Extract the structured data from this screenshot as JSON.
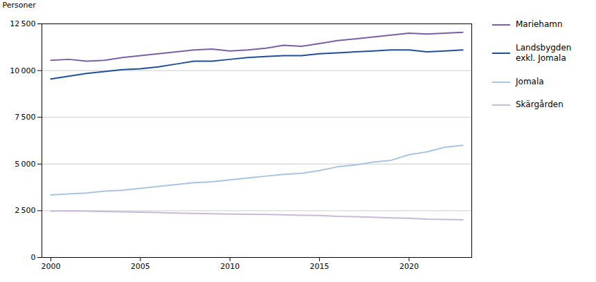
{
  "chart_data": {
    "type": "line",
    "ylabel": "Personer",
    "x": [
      2000,
      2001,
      2002,
      2003,
      2004,
      2005,
      2006,
      2007,
      2008,
      2009,
      2010,
      2011,
      2012,
      2013,
      2014,
      2015,
      2016,
      2017,
      2018,
      2019,
      2020,
      2021,
      2022,
      2023
    ],
    "series": [
      {
        "name": "Mariehamn",
        "color": "#7B5EA7",
        "values": [
          10550,
          10600,
          10500,
          10550,
          10700,
          10800,
          10900,
          11000,
          11100,
          11150,
          11050,
          11100,
          11200,
          11350,
          11300,
          11450,
          11600,
          11700,
          11800,
          11900,
          12000,
          11950,
          12000,
          12050
        ]
      },
      {
        "name": "Landsbygden\nexkl. Jomala",
        "color": "#1F4E9C",
        "values": [
          9550,
          9700,
          9850,
          9950,
          10050,
          10100,
          10200,
          10350,
          10500,
          10500,
          10600,
          10700,
          10750,
          10800,
          10800,
          10900,
          10950,
          11000,
          11050,
          11100,
          11100,
          11000,
          11050,
          11100
        ]
      },
      {
        "name": "Jomala",
        "color": "#A8C4E0",
        "values": [
          3350,
          3400,
          3450,
          3550,
          3600,
          3700,
          3800,
          3900,
          4000,
          4050,
          4150,
          4250,
          4350,
          4450,
          4500,
          4650,
          4850,
          4950,
          5100,
          5200,
          5500,
          5650,
          5900,
          6000
        ]
      },
      {
        "name": "Skärgården",
        "color": "#C9B8D8",
        "values": [
          2480,
          2500,
          2480,
          2460,
          2440,
          2420,
          2400,
          2380,
          2360,
          2340,
          2320,
          2310,
          2300,
          2280,
          2260,
          2250,
          2200,
          2180,
          2150,
          2120,
          2100,
          2050,
          2030,
          2020
        ]
      }
    ],
    "xlim": [
      1999.5,
      2023.5
    ],
    "xticks": [
      2000,
      2005,
      2010,
      2015,
      2020
    ],
    "ylim": [
      0,
      12500
    ],
    "yticks": [
      0,
      {
        "value": 2500,
        "label": "2 500"
      },
      {
        "value": 5000,
        "label": "5 000"
      },
      {
        "value": 7500,
        "label": "7 500"
      },
      {
        "value": 10000,
        "label": "10 000"
      },
      {
        "value": 12500,
        "label": "12 500"
      }
    ],
    "grid": "y",
    "legend": "upper right"
  }
}
